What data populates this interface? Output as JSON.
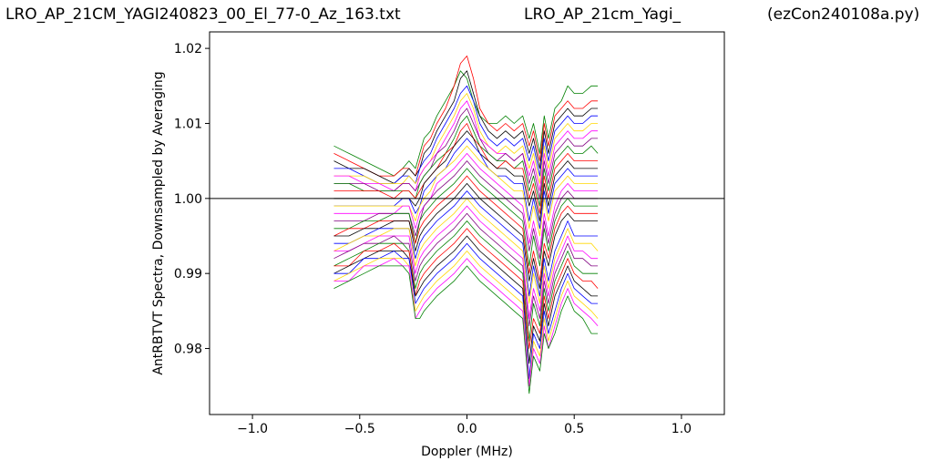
{
  "header": {
    "file_title": "LRO_AP_21CM_YAGI240823_00_El_77-0_Az_163.txt",
    "study_title": "LRO_AP_21cm_Yagi_",
    "program_title": "(ezCon240108a.py)"
  },
  "chart_data": {
    "type": "line",
    "xlabel": "Doppler (MHz)",
    "ylabel": "AntRBTVT Spectra, Downsampled by Averaging",
    "xlim": [
      -1.2,
      1.2
    ],
    "ylim": [
      0.9712,
      1.0222
    ],
    "xticks": [
      -1.0,
      -0.5,
      0.0,
      0.5,
      1.0
    ],
    "xtick_labels": [
      "−1.0",
      "−0.5",
      "0.0",
      "0.5",
      "1.0"
    ],
    "yticks": [
      0.98,
      0.99,
      1.0,
      1.01,
      1.02
    ],
    "ytick_labels": [
      "0.98",
      "0.99",
      "1.00",
      "1.01",
      "1.02"
    ],
    "reference_line": {
      "y": 1.0,
      "color": "#000000"
    },
    "grid": false,
    "x": [
      -0.62,
      -0.55,
      -0.48,
      -0.41,
      -0.34,
      -0.3,
      -0.27,
      -0.24,
      -0.22,
      -0.2,
      -0.17,
      -0.14,
      -0.1,
      -0.06,
      -0.03,
      0.0,
      0.03,
      0.06,
      0.1,
      0.14,
      0.18,
      0.22,
      0.26,
      0.29,
      0.31,
      0.34,
      0.36,
      0.38,
      0.41,
      0.44,
      0.47,
      0.5,
      0.54,
      0.58,
      0.61
    ],
    "series": [
      {
        "color": "#008000",
        "values": [
          1.007,
          1.006,
          1.005,
          1.004,
          1.003,
          1.004,
          1.005,
          1.004,
          1.006,
          1.008,
          1.009,
          1.011,
          1.013,
          1.015,
          1.017,
          1.016,
          1.013,
          1.011,
          1.01,
          1.01,
          1.011,
          1.01,
          1.011,
          1.008,
          1.01,
          1.006,
          1.011,
          1.008,
          1.012,
          1.013,
          1.015,
          1.014,
          1.014,
          1.015,
          1.015
        ]
      },
      {
        "color": "#ff0000",
        "values": [
          1.006,
          1.005,
          1.004,
          1.003,
          1.003,
          1.004,
          1.004,
          1.003,
          1.005,
          1.007,
          1.008,
          1.01,
          1.012,
          1.015,
          1.018,
          1.019,
          1.016,
          1.012,
          1.01,
          1.009,
          1.01,
          1.009,
          1.01,
          1.007,
          1.009,
          1.005,
          1.01,
          1.007,
          1.011,
          1.012,
          1.013,
          1.012,
          1.012,
          1.013,
          1.013
        ]
      },
      {
        "color": "#000000",
        "values": [
          1.005,
          1.004,
          1.004,
          1.003,
          1.002,
          1.003,
          1.004,
          1.003,
          1.004,
          1.006,
          1.007,
          1.009,
          1.011,
          1.013,
          1.016,
          1.017,
          1.014,
          1.011,
          1.009,
          1.008,
          1.009,
          1.008,
          1.009,
          1.006,
          1.008,
          1.004,
          1.009,
          1.006,
          1.01,
          1.011,
          1.012,
          1.011,
          1.011,
          1.012,
          1.012
        ]
      },
      {
        "color": "#0000ff",
        "values": [
          1.004,
          1.004,
          1.003,
          1.002,
          1.002,
          1.003,
          1.003,
          1.002,
          1.004,
          1.005,
          1.006,
          1.008,
          1.01,
          1.012,
          1.014,
          1.015,
          1.013,
          1.01,
          1.008,
          1.007,
          1.008,
          1.007,
          1.008,
          1.005,
          1.007,
          1.003,
          1.008,
          1.005,
          1.009,
          1.01,
          1.011,
          1.01,
          1.01,
          1.011,
          1.011
        ]
      },
      {
        "color": "#ffd700",
        "values": [
          1.003,
          1.003,
          1.003,
          1.002,
          1.002,
          1.002,
          1.003,
          1.002,
          1.003,
          1.004,
          1.005,
          1.007,
          1.009,
          1.011,
          1.013,
          1.014,
          1.012,
          1.009,
          1.007,
          1.006,
          1.007,
          1.006,
          1.007,
          1.004,
          1.006,
          1.002,
          1.007,
          1.004,
          1.008,
          1.009,
          1.01,
          1.009,
          1.009,
          1.01,
          1.01
        ]
      },
      {
        "color": "#ff00ff",
        "values": [
          1.003,
          1.003,
          1.002,
          1.002,
          1.001,
          1.002,
          1.002,
          1.001,
          1.003,
          1.004,
          1.005,
          1.006,
          1.008,
          1.01,
          1.012,
          1.013,
          1.011,
          1.008,
          1.007,
          1.006,
          1.006,
          1.005,
          1.006,
          1.003,
          1.005,
          1.001,
          1.006,
          1.003,
          1.007,
          1.008,
          1.009,
          1.008,
          1.008,
          1.009,
          1.009
        ]
      },
      {
        "color": "#800080",
        "values": [
          1.002,
          1.002,
          1.002,
          1.001,
          1.001,
          1.002,
          1.002,
          1.001,
          1.002,
          1.003,
          1.004,
          1.006,
          1.007,
          1.009,
          1.011,
          1.012,
          1.01,
          1.008,
          1.006,
          1.005,
          1.006,
          1.005,
          1.006,
          1.002,
          1.004,
          1.0,
          1.005,
          1.002,
          1.006,
          1.007,
          1.008,
          1.007,
          1.007,
          1.008,
          1.008
        ]
      },
      {
        "color": "#008000",
        "values": [
          1.002,
          1.002,
          1.001,
          1.001,
          1.001,
          1.001,
          1.001,
          1.0,
          1.002,
          1.003,
          1.004,
          1.005,
          1.006,
          1.008,
          1.01,
          1.011,
          1.009,
          1.007,
          1.006,
          1.005,
          1.005,
          1.004,
          1.005,
          1.001,
          1.003,
          0.999,
          1.004,
          1.001,
          1.005,
          1.006,
          1.007,
          1.006,
          1.006,
          1.007,
          1.006
        ]
      },
      {
        "color": "#ff0000",
        "values": [
          1.001,
          1.001,
          1.001,
          1.001,
          1.0,
          1.001,
          1.001,
          1.0,
          1.001,
          1.002,
          1.003,
          1.004,
          1.006,
          1.007,
          1.009,
          1.01,
          1.008,
          1.007,
          1.005,
          1.004,
          1.005,
          1.004,
          1.004,
          1.0,
          1.002,
          0.998,
          1.003,
          1.0,
          1.004,
          1.005,
          1.006,
          1.005,
          1.005,
          1.005,
          1.005
        ]
      },
      {
        "color": "#000000",
        "values": [
          1.0,
          1.0,
          1.0,
          1.0,
          1.0,
          1.0,
          1.0,
          0.999,
          1.0,
          1.002,
          1.003,
          1.004,
          1.005,
          1.007,
          1.008,
          1.009,
          1.008,
          1.006,
          1.005,
          1.004,
          1.004,
          1.003,
          1.003,
          0.999,
          1.001,
          0.997,
          1.002,
          0.999,
          1.003,
          1.004,
          1.005,
          1.004,
          1.004,
          1.004,
          1.004
        ]
      },
      {
        "color": "#0000ff",
        "values": [
          0.999,
          0.999,
          0.999,
          0.999,
          0.999,
          1.0,
          1.0,
          0.998,
          0.999,
          1.001,
          1.002,
          1.003,
          1.004,
          1.006,
          1.007,
          1.008,
          1.007,
          1.006,
          1.004,
          1.003,
          1.003,
          1.002,
          1.002,
          0.997,
          1.0,
          0.996,
          1.001,
          0.998,
          1.002,
          1.003,
          1.004,
          1.003,
          1.003,
          1.003,
          1.003
        ]
      },
      {
        "color": "#ffd700",
        "values": [
          0.999,
          0.999,
          0.999,
          0.999,
          0.999,
          0.999,
          0.999,
          0.997,
          0.999,
          1.0,
          1.001,
          1.003,
          1.004,
          1.005,
          1.006,
          1.007,
          1.006,
          1.005,
          1.004,
          1.003,
          1.002,
          1.001,
          1.001,
          0.996,
          0.999,
          0.995,
          1.0,
          0.997,
          1.001,
          1.002,
          1.003,
          1.002,
          1.002,
          1.002,
          1.002
        ]
      },
      {
        "color": "#ff00ff",
        "values": [
          0.998,
          0.998,
          0.998,
          0.998,
          0.998,
          0.999,
          0.999,
          0.996,
          0.998,
          0.999,
          1.0,
          1.002,
          1.003,
          1.004,
          1.005,
          1.006,
          1.005,
          1.004,
          1.003,
          1.002,
          1.001,
          1.0,
          0.999,
          0.994,
          0.997,
          0.993,
          0.998,
          0.995,
          0.999,
          1.001,
          1.002,
          1.001,
          1.001,
          1.001,
          1.001
        ]
      },
      {
        "color": "#800080",
        "values": [
          0.997,
          0.997,
          0.997,
          0.998,
          0.998,
          0.998,
          0.998,
          0.995,
          0.997,
          0.999,
          1.0,
          1.001,
          1.002,
          1.003,
          1.004,
          1.005,
          1.004,
          1.003,
          1.002,
          1.001,
          1.0,
          0.999,
          0.998,
          0.993,
          0.996,
          0.992,
          0.997,
          0.994,
          0.998,
          1.0,
          1.001,
          1.0,
          1.0,
          1.0,
          1.0
        ]
      },
      {
        "color": "#008000",
        "values": [
          0.996,
          0.996,
          0.997,
          0.997,
          0.998,
          0.998,
          0.998,
          0.994,
          0.997,
          0.998,
          0.999,
          1.0,
          1.001,
          1.002,
          1.003,
          1.004,
          1.003,
          1.002,
          1.001,
          1.0,
          0.999,
          0.998,
          0.997,
          0.991,
          0.995,
          0.991,
          0.996,
          0.993,
          0.997,
          0.999,
          1.0,
          0.999,
          0.999,
          0.999,
          0.999
        ]
      },
      {
        "color": "#ff0000",
        "values": [
          0.995,
          0.996,
          0.996,
          0.997,
          0.997,
          0.997,
          0.997,
          0.994,
          0.996,
          0.997,
          0.998,
          0.999,
          1.0,
          1.001,
          1.002,
          1.003,
          1.002,
          1.001,
          1.0,
          0.999,
          0.998,
          0.997,
          0.996,
          0.99,
          0.993,
          0.989,
          0.994,
          0.992,
          0.996,
          0.998,
          0.999,
          0.998,
          0.998,
          0.998,
          0.998
        ]
      },
      {
        "color": "#000000",
        "values": [
          0.995,
          0.995,
          0.996,
          0.996,
          0.997,
          0.997,
          0.997,
          0.993,
          0.995,
          0.996,
          0.997,
          0.998,
          0.999,
          1.0,
          1.001,
          1.002,
          1.001,
          1.0,
          0.999,
          0.998,
          0.997,
          0.996,
          0.995,
          0.989,
          0.992,
          0.988,
          0.993,
          0.991,
          0.995,
          0.997,
          0.998,
          0.997,
          0.997,
          0.997,
          0.997
        ]
      },
      {
        "color": "#0000ff",
        "values": [
          0.994,
          0.994,
          0.995,
          0.996,
          0.996,
          0.996,
          0.996,
          0.992,
          0.994,
          0.995,
          0.996,
          0.997,
          0.998,
          0.999,
          1.0,
          1.001,
          1.0,
          0.999,
          0.998,
          0.997,
          0.996,
          0.995,
          0.994,
          0.987,
          0.991,
          0.987,
          0.992,
          0.989,
          0.993,
          0.995,
          0.997,
          0.995,
          0.995,
          0.995,
          0.995
        ]
      },
      {
        "color": "#ffd700",
        "values": [
          0.993,
          0.994,
          0.995,
          0.995,
          0.996,
          0.996,
          0.996,
          0.991,
          0.993,
          0.994,
          0.995,
          0.996,
          0.997,
          0.998,
          0.999,
          1.0,
          0.999,
          0.998,
          0.997,
          0.996,
          0.995,
          0.994,
          0.993,
          0.986,
          0.99,
          0.986,
          0.991,
          0.988,
          0.992,
          0.994,
          0.996,
          0.994,
          0.994,
          0.994,
          0.993
        ]
      },
      {
        "color": "#ff00ff",
        "values": [
          0.993,
          0.993,
          0.994,
          0.995,
          0.995,
          0.995,
          0.995,
          0.99,
          0.992,
          0.993,
          0.994,
          0.995,
          0.996,
          0.997,
          0.998,
          0.999,
          0.998,
          0.997,
          0.996,
          0.995,
          0.994,
          0.993,
          0.992,
          0.984,
          0.988,
          0.985,
          0.99,
          0.987,
          0.991,
          0.993,
          0.995,
          0.993,
          0.993,
          0.992,
          0.992
        ]
      },
      {
        "color": "#800080",
        "values": [
          0.992,
          0.993,
          0.994,
          0.994,
          0.995,
          0.994,
          0.994,
          0.989,
          0.991,
          0.992,
          0.993,
          0.994,
          0.995,
          0.996,
          0.997,
          0.998,
          0.997,
          0.996,
          0.995,
          0.994,
          0.993,
          0.992,
          0.991,
          0.983,
          0.987,
          0.984,
          0.989,
          0.986,
          0.99,
          0.992,
          0.994,
          0.992,
          0.992,
          0.991,
          0.991
        ]
      },
      {
        "color": "#008000",
        "values": [
          0.991,
          0.992,
          0.993,
          0.994,
          0.994,
          0.994,
          0.993,
          0.988,
          0.99,
          0.991,
          0.992,
          0.993,
          0.994,
          0.995,
          0.996,
          0.997,
          0.996,
          0.995,
          0.994,
          0.993,
          0.992,
          0.991,
          0.99,
          0.981,
          0.986,
          0.983,
          0.988,
          0.985,
          0.989,
          0.991,
          0.993,
          0.991,
          0.99,
          0.99,
          0.99
        ]
      },
      {
        "color": "#ff0000",
        "values": [
          0.991,
          0.991,
          0.993,
          0.993,
          0.994,
          0.993,
          0.993,
          0.987,
          0.989,
          0.99,
          0.991,
          0.992,
          0.993,
          0.994,
          0.995,
          0.996,
          0.995,
          0.994,
          0.993,
          0.992,
          0.991,
          0.99,
          0.989,
          0.98,
          0.984,
          0.982,
          0.987,
          0.984,
          0.988,
          0.99,
          0.992,
          0.99,
          0.989,
          0.989,
          0.988
        ]
      },
      {
        "color": "#000000",
        "values": [
          0.99,
          0.991,
          0.992,
          0.993,
          0.993,
          0.993,
          0.992,
          0.987,
          0.988,
          0.989,
          0.99,
          0.991,
          0.992,
          0.993,
          0.994,
          0.995,
          0.994,
          0.993,
          0.992,
          0.991,
          0.99,
          0.989,
          0.988,
          0.978,
          0.983,
          0.981,
          0.986,
          0.983,
          0.987,
          0.989,
          0.991,
          0.989,
          0.988,
          0.987,
          0.987
        ]
      },
      {
        "color": "#0000ff",
        "values": [
          0.99,
          0.99,
          0.992,
          0.992,
          0.993,
          0.992,
          0.992,
          0.986,
          0.987,
          0.988,
          0.989,
          0.99,
          0.991,
          0.992,
          0.993,
          0.994,
          0.993,
          0.992,
          0.991,
          0.99,
          0.989,
          0.988,
          0.987,
          0.976,
          0.982,
          0.98,
          0.985,
          0.982,
          0.985,
          0.988,
          0.99,
          0.988,
          0.987,
          0.986,
          0.986
        ]
      },
      {
        "color": "#ffd700",
        "values": [
          0.989,
          0.99,
          0.991,
          0.992,
          0.992,
          0.992,
          0.991,
          0.985,
          0.986,
          0.987,
          0.988,
          0.989,
          0.99,
          0.991,
          0.992,
          0.993,
          0.992,
          0.991,
          0.99,
          0.989,
          0.988,
          0.987,
          0.986,
          0.975,
          0.981,
          0.979,
          0.984,
          0.981,
          0.984,
          0.987,
          0.989,
          0.987,
          0.986,
          0.985,
          0.984
        ]
      },
      {
        "color": "#ff00ff",
        "values": [
          0.989,
          0.989,
          0.991,
          0.991,
          0.992,
          0.991,
          0.991,
          0.984,
          0.985,
          0.986,
          0.987,
          0.988,
          0.989,
          0.99,
          0.991,
          0.992,
          0.991,
          0.99,
          0.989,
          0.988,
          0.987,
          0.986,
          0.985,
          0.975,
          0.98,
          0.978,
          0.983,
          0.98,
          0.983,
          0.986,
          0.988,
          0.986,
          0.985,
          0.984,
          0.983
        ]
      },
      {
        "color": "#008000",
        "values": [
          0.988,
          0.989,
          0.99,
          0.991,
          0.991,
          0.991,
          0.99,
          0.984,
          0.984,
          0.985,
          0.986,
          0.987,
          0.988,
          0.989,
          0.99,
          0.991,
          0.99,
          0.989,
          0.988,
          0.987,
          0.986,
          0.985,
          0.984,
          0.974,
          0.979,
          0.977,
          0.982,
          0.98,
          0.982,
          0.985,
          0.987,
          0.985,
          0.984,
          0.982,
          0.982
        ]
      }
    ]
  }
}
